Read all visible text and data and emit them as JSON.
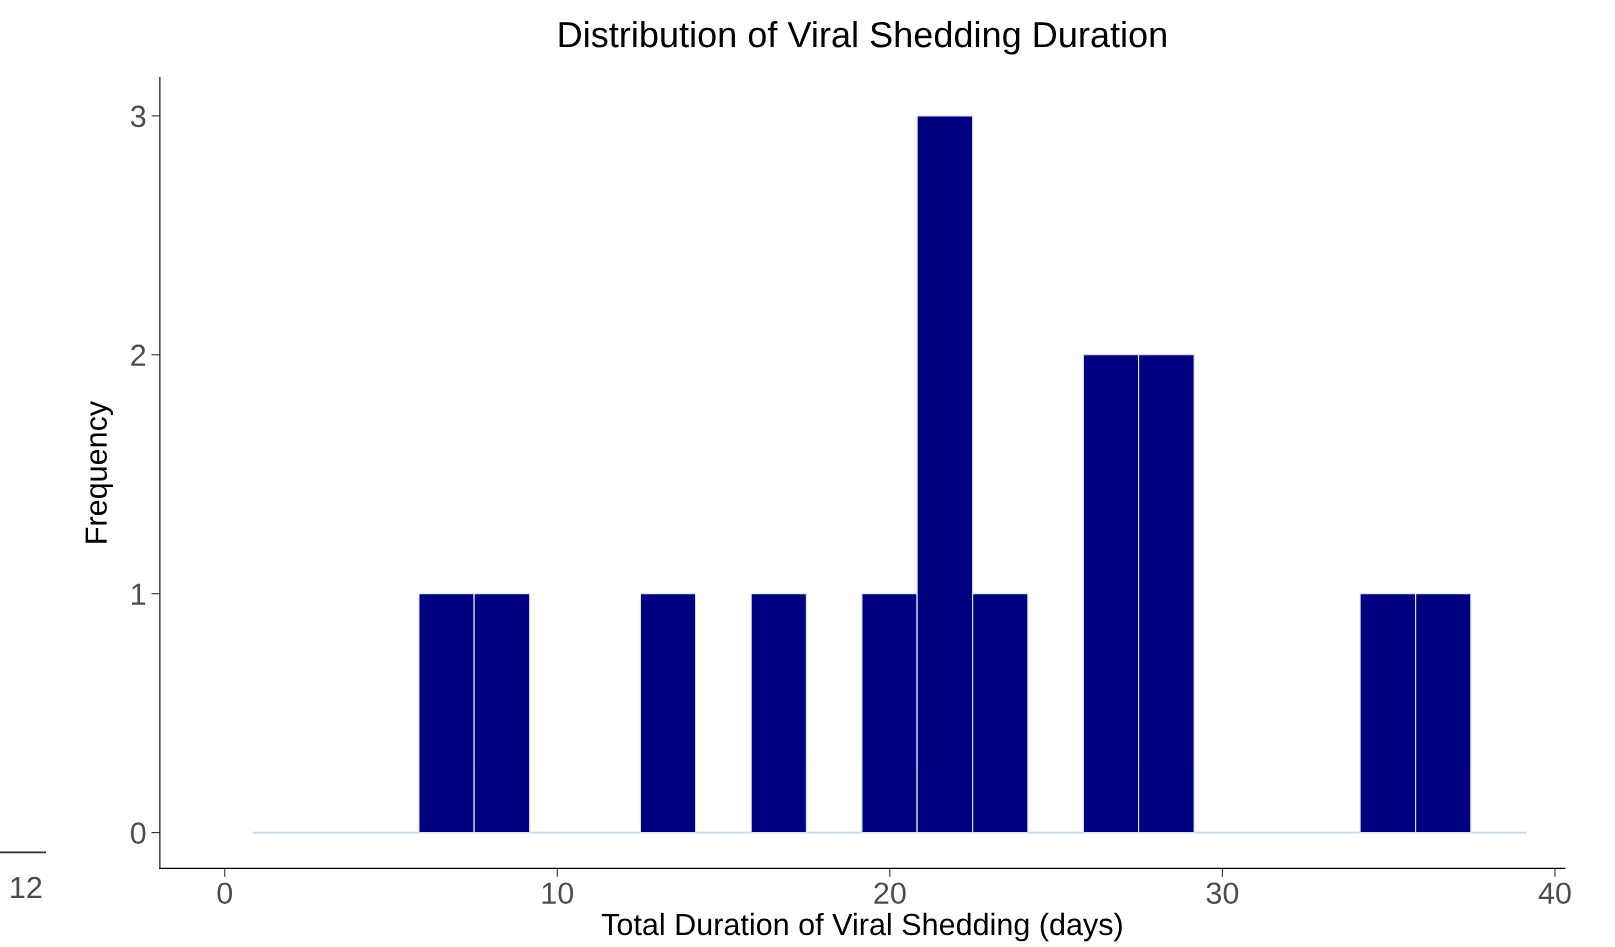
{
  "chart_data": {
    "type": "histogram",
    "title": "Distribution of Viral Shedding Duration",
    "xlabel": "Total Duration of Viral Shedding (days)",
    "ylabel": "Frequency",
    "bins": [
      0.84,
      2.51,
      4.17,
      5.84,
      7.5,
      9.17,
      10.83,
      12.5,
      14.16,
      15.83,
      17.49,
      19.16,
      20.82,
      22.49,
      24.15,
      25.82,
      27.48,
      29.15,
      30.81,
      32.48,
      34.14,
      35.81,
      37.47,
      39.14
    ],
    "values": [
      0,
      0,
      0,
      1,
      1,
      0,
      0,
      1,
      0,
      1,
      0,
      1,
      3,
      1,
      0,
      2,
      2,
      0,
      0,
      0,
      1,
      1,
      0
    ],
    "color": "#000080",
    "xlim": [
      -1.95,
      40.3
    ],
    "xticks": [
      0,
      10,
      20,
      30,
      40
    ],
    "ylim": [
      -0.15,
      3.16
    ],
    "yticks": [
      0,
      1,
      2,
      3
    ],
    "grid": false,
    "ref_lines": [
      {
        "axis": "y",
        "value": 0,
        "color": "#c9d6e3"
      }
    ],
    "annotations": [
      "12"
    ]
  }
}
